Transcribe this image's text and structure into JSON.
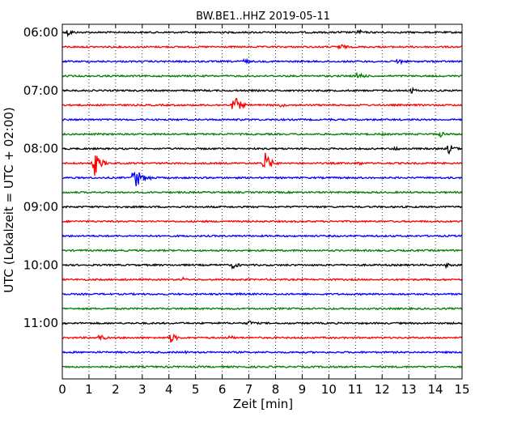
{
  "chart_data": {
    "type": "line",
    "title": "BW.BE1..HHZ 2019-05-11",
    "xlabel": "Zeit  [min]",
    "ylabel": "UTC (Lokalzeit = UTC + 02:00)",
    "xlim": [
      0,
      15
    ],
    "x_ticks": [
      "0",
      "1",
      "2",
      "3",
      "4",
      "5",
      "6",
      "7",
      "8",
      "9",
      "10",
      "11",
      "12",
      "13",
      "14",
      "15"
    ],
    "y_tick_labels": [
      "06:00",
      "07:00",
      "08:00",
      "09:00",
      "10:00",
      "11:00"
    ],
    "y_tick_trace_index": [
      0,
      4,
      8,
      12,
      16,
      20
    ],
    "grid": "vertical-dotted",
    "trace_minutes": 15,
    "trace_colors": [
      "#000000",
      "#ff0000",
      "#0000ff",
      "#008000"
    ],
    "traces": [
      {
        "start": "06:00",
        "color": "#000000",
        "events": [
          [
            0.2,
            5
          ],
          [
            11.1,
            4
          ],
          [
            10.4,
            2
          ]
        ]
      },
      {
        "start": "06:15",
        "color": "#ff0000",
        "events": [
          [
            10.4,
            5
          ]
        ]
      },
      {
        "start": "06:30",
        "color": "#0000ff",
        "events": [
          [
            6.8,
            4
          ],
          [
            12.6,
            5
          ]
        ]
      },
      {
        "start": "06:45",
        "color": "#008000",
        "events": [
          [
            11.1,
            6
          ]
        ]
      },
      {
        "start": "07:00",
        "color": "#000000",
        "events": [
          [
            13.1,
            4
          ]
        ]
      },
      {
        "start": "07:15",
        "color": "#ff0000",
        "events": [
          [
            6.45,
            13
          ],
          [
            8.2,
            3
          ]
        ]
      },
      {
        "start": "07:30",
        "color": "#0000ff",
        "events": [
          [
            10.0,
            2
          ]
        ]
      },
      {
        "start": "07:45",
        "color": "#008000",
        "events": [
          [
            12.0,
            2
          ],
          [
            14.2,
            4
          ]
        ]
      },
      {
        "start": "08:00",
        "color": "#000000",
        "events": [
          [
            14.5,
            7
          ],
          [
            12.5,
            3
          ],
          [
            9.2,
            2
          ]
        ]
      },
      {
        "start": "08:15",
        "color": "#ff0000",
        "events": [
          [
            1.2,
            16
          ],
          [
            7.6,
            14
          ],
          [
            11.1,
            3
          ]
        ]
      },
      {
        "start": "08:30",
        "color": "#0000ff",
        "events": [
          [
            2.7,
            17
          ],
          [
            3.3,
            3
          ]
        ]
      },
      {
        "start": "08:45",
        "color": "#008000",
        "events": []
      },
      {
        "start": "09:00",
        "color": "#000000",
        "events": [
          [
            2.0,
            2
          ]
        ]
      },
      {
        "start": "09:15",
        "color": "#ff0000",
        "events": []
      },
      {
        "start": "09:30",
        "color": "#0000ff",
        "events": []
      },
      {
        "start": "09:45",
        "color": "#008000",
        "events": []
      },
      {
        "start": "10:00",
        "color": "#000000",
        "events": [
          [
            6.4,
            5
          ],
          [
            14.4,
            3
          ]
        ]
      },
      {
        "start": "10:15",
        "color": "#ff0000",
        "events": [
          [
            4.5,
            3
          ],
          [
            2.3,
            2
          ]
        ]
      },
      {
        "start": "10:30",
        "color": "#0000ff",
        "events": [
          [
            6.6,
            2
          ]
        ]
      },
      {
        "start": "10:45",
        "color": "#008000",
        "events": []
      },
      {
        "start": "11:00",
        "color": "#000000",
        "events": [
          [
            7.0,
            4
          ]
        ]
      },
      {
        "start": "11:15",
        "color": "#ff0000",
        "events": [
          [
            1.4,
            5
          ],
          [
            4.05,
            7
          ],
          [
            6.3,
            3
          ]
        ]
      },
      {
        "start": "11:30",
        "color": "#0000ff",
        "events": [
          [
            4.6,
            2
          ]
        ]
      },
      {
        "start": "11:45",
        "color": "#008000",
        "events": [
          [
            10.0,
            2
          ]
        ]
      }
    ]
  }
}
